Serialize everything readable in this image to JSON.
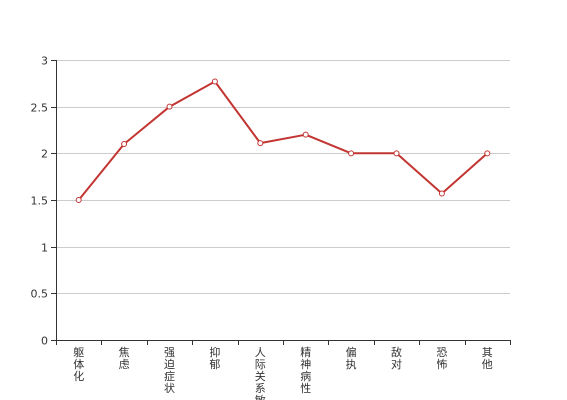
{
  "chart_data": {
    "type": "line",
    "categories": [
      "躯体化",
      "焦虑",
      "强迫症状",
      "抑郁",
      "人际关系敏感",
      "精神病性",
      "偏执",
      "敌对",
      "恐怖",
      "其他"
    ],
    "series": [
      {
        "values": [
          1.5,
          2.1,
          2.5,
          2.77,
          2.11,
          2.2,
          2.0,
          2.0,
          1.57,
          2.0
        ]
      }
    ],
    "yticks": [
      "0",
      "0.5",
      "1",
      "1.5",
      "2",
      "2.5",
      "3"
    ],
    "ylim": [
      0,
      3
    ],
    "grid": true,
    "legend": "none",
    "colors": {
      "line": "#c23531",
      "grid": "#cccccc",
      "axis": "#333333",
      "point_fill": "#ffffff"
    }
  }
}
